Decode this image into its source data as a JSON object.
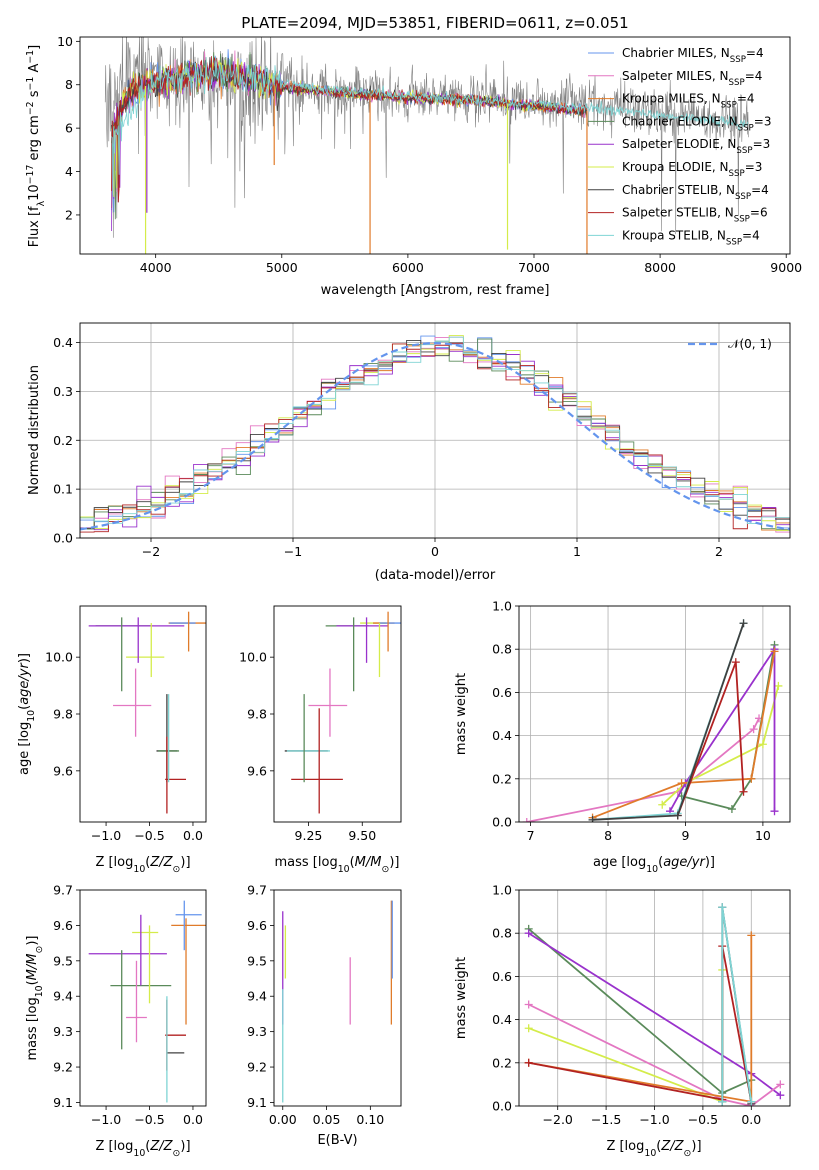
{
  "chart_data": [
    {
      "id": "spectrum",
      "type": "line",
      "title": "PLATE=2094, MJD=53851, FIBERID=0611, z=0.051",
      "xlabel": "wavelength [Angstrom, rest frame]",
      "ylabel": "Flux [f_λ10^-17 erg cm^-2 s^-1 A^-1]",
      "xlim": [
        3400,
        9030
      ],
      "ylim": [
        0.2,
        10.2
      ],
      "xticks": [
        "4000",
        "5000",
        "6000",
        "7000",
        "8000",
        "9000"
      ],
      "yticks": [
        "2",
        "4",
        "6",
        "8",
        "10"
      ],
      "grid": false,
      "legend_position": "upper-right",
      "data_series": {
        "name": "data",
        "color": "#808080",
        "wavelength_range": [
          3600,
          8700
        ],
        "profile_wl": [
          3600,
          3700,
          3800,
          3900,
          4000,
          4200,
          4500,
          5000,
          5500,
          6000,
          6500,
          7000,
          7500,
          8000,
          8500,
          8700
        ],
        "profile_flux": [
          6.0,
          7.6,
          8.4,
          8.6,
          8.5,
          8.2,
          8.0,
          7.8,
          7.6,
          7.5,
          7.4,
          7.3,
          7.1,
          6.7,
          6.4,
          6.2
        ]
      },
      "series": [
        {
          "name": "Chabrier MILES, N_SSP=4",
          "color": "#6495ed"
        },
        {
          "name": "Salpeter MILES, N_SSP=4",
          "color": "#e377c2"
        },
        {
          "name": "Kroupa MILES, N_SSP=4",
          "color": "#e07b2a"
        },
        {
          "name": "Chabrier ELODIE, N_SSP=3",
          "color": "#5a8a5a"
        },
        {
          "name": "Salpeter ELODIE, N_SSP=3",
          "color": "#9932cc"
        },
        {
          "name": "Kroupa ELODIE, N_SSP=3",
          "color": "#d4ec4a"
        },
        {
          "name": "Chabrier STELIB, N_SSP=4",
          "color": "#404040"
        },
        {
          "name": "Salpeter STELIB, N_SSP=6",
          "color": "#b22222"
        },
        {
          "name": "Kroupa STELIB, N_SSP=4",
          "color": "#7fd4d4"
        }
      ],
      "model_profile": {
        "wl": [
          3650,
          3700,
          3800,
          3900,
          4000,
          4100,
          4300,
          4500,
          4700,
          5000,
          5500,
          6000,
          6500,
          7000,
          7400
        ],
        "flux": [
          5.6,
          6.6,
          7.6,
          7.9,
          8.1,
          8.2,
          8.5,
          8.6,
          8.3,
          7.9,
          7.6,
          7.4,
          7.3,
          7.0,
          6.8
        ]
      },
      "model_end_wl": 7420,
      "kroupa_stelib_profile": {
        "wl": [
          3650,
          4000,
          4500,
          5000,
          5500,
          6000,
          6500,
          7000,
          7500,
          8000,
          8500,
          8700
        ],
        "flux": [
          5.6,
          8.2,
          8.5,
          8.0,
          7.7,
          7.5,
          7.3,
          7.1,
          6.9,
          6.6,
          6.3,
          6.1
        ]
      },
      "dips": [
        {
          "wl": 3920,
          "flux": 0.2,
          "color": "#d4ec4a"
        },
        {
          "wl": 5700,
          "flux": 0.2,
          "color": "#e07b2a"
        },
        {
          "wl": 6790,
          "flux": 0.4,
          "color": "#d4ec4a"
        },
        {
          "wl": 7420,
          "flux": 0.2,
          "color": "#e07b2a"
        },
        {
          "wl": 4940,
          "flux": 4.3,
          "color": "#e07b2a"
        },
        {
          "wl": 3930,
          "flux": 2.1,
          "color": "#9932cc"
        }
      ]
    },
    {
      "id": "residuals",
      "type": "histogram",
      "xlabel": "(data-model)/error",
      "ylabel": "Normed distribution",
      "xlim": [
        -2.5,
        2.5
      ],
      "ylim": [
        0,
        0.44
      ],
      "xticks": [
        "−2",
        "−1",
        "0",
        "1",
        "2"
      ],
      "yticks": [
        "0.0",
        "0.1",
        "0.2",
        "0.3",
        "0.4"
      ],
      "grid": true,
      "legend_position": "upper-right",
      "legend": "𝒩(0, 1)",
      "curve": {
        "name": "𝒩(0, 1)",
        "mean": 0,
        "sigma": 1,
        "color": "#6495ed",
        "style": "dashed"
      },
      "bin_width": 0.1
    },
    {
      "id": "age-vs-Z",
      "type": "errorbar",
      "xlabel": "Z [log10(Z/Z⊙)]",
      "ylabel": "age  [log10(age/yr)]",
      "xlim": [
        -1.3,
        0.15
      ],
      "ylim": [
        9.42,
        10.18
      ],
      "xticks": [
        "−1.0",
        "−0.5",
        "0.0"
      ],
      "yticks": [
        "9.6",
        "9.8",
        "10.0"
      ],
      "points": [
        {
          "x": -0.8,
          "xerr": 0.32,
          "y": 10.11,
          "yerr": 0.0,
          "color": "#5a8a5a"
        },
        {
          "x": -0.65,
          "xerr": 0.55,
          "y": 10.11,
          "yerr": 0.0,
          "color": "#9932cc"
        },
        {
          "x": -0.55,
          "xerr": 0.22,
          "y": 10.0,
          "yerr": 0.14,
          "color": "#d4ec4a"
        },
        {
          "x": -0.7,
          "xerr": 0.22,
          "y": 9.83,
          "yerr": 0.0,
          "color": "#e377c2"
        },
        {
          "x": -0.05,
          "xerr": 0.23,
          "y": 10.12,
          "yerr": 0.0,
          "color": "#e07b2a"
        },
        {
          "x": -0.12,
          "xerr": 0.15,
          "y": 10.12,
          "yerr": 0.0,
          "color": "#6495ed"
        },
        {
          "x": -0.3,
          "xerr": 0.12,
          "y": 9.67,
          "yerr": 0.0,
          "color": "#404040"
        },
        {
          "x": -0.28,
          "xerr": 0.12,
          "y": 9.67,
          "yerr": 0.0,
          "color": "#5a8a5a"
        },
        {
          "x": -0.2,
          "xerr": 0.12,
          "y": 9.57,
          "yerr": 0.0,
          "color": "#b22222"
        }
      ],
      "vlines": [
        {
          "x": -0.82,
          "y1": 9.88,
          "y2": 10.14,
          "color": "#5a8a5a"
        },
        {
          "x": -0.63,
          "y1": 9.98,
          "y2": 10.14,
          "color": "#9932cc"
        },
        {
          "x": -0.48,
          "y1": 9.93,
          "y2": 10.12,
          "color": "#d4ec4a"
        },
        {
          "x": -0.66,
          "y1": 9.72,
          "y2": 9.96,
          "color": "#e377c2"
        },
        {
          "x": -0.05,
          "y1": 10.02,
          "y2": 10.16,
          "color": "#e07b2a"
        },
        {
          "x": -0.3,
          "y1": 9.56,
          "y2": 9.87,
          "color": "#404040"
        },
        {
          "x": -0.28,
          "y1": 9.56,
          "y2": 9.87,
          "color": "#7fd4d4"
        },
        {
          "x": -0.3,
          "y1": 9.45,
          "y2": 9.72,
          "color": "#b22222"
        }
      ]
    },
    {
      "id": "age-vs-mass",
      "type": "errorbar",
      "xlabel": "mass [log10(M/M⊙)]",
      "xlim": [
        9.09,
        9.68
      ],
      "ylim": [
        9.42,
        10.18
      ],
      "xticks": [
        "9.25",
        "9.50"
      ],
      "yticks": [
        "9.6",
        "9.8",
        "10.0"
      ],
      "points": [
        {
          "x": 9.43,
          "xerr": 0.1,
          "y": 10.11,
          "yerr": 0.0,
          "color": "#5a8a5a"
        },
        {
          "x": 9.5,
          "xerr": 0.12,
          "y": 10.11,
          "yerr": 0.0,
          "color": "#9932cc"
        },
        {
          "x": 9.55,
          "xerr": 0.06,
          "y": 10.12,
          "yerr": 0.0,
          "color": "#d4ec4a"
        },
        {
          "x": 9.6,
          "xerr": 0.05,
          "y": 10.12,
          "yerr": 0.0,
          "color": "#e07b2a"
        },
        {
          "x": 9.63,
          "xerr": 0.05,
          "y": 10.12,
          "yerr": 0.0,
          "color": "#6495ed"
        },
        {
          "x": 9.34,
          "xerr": 0.09,
          "y": 9.83,
          "yerr": 0.0,
          "color": "#e377c2"
        },
        {
          "x": 9.24,
          "xerr": 0.1,
          "y": 9.67,
          "yerr": 0.0,
          "color": "#404040"
        },
        {
          "x": 9.25,
          "xerr": 0.1,
          "y": 9.67,
          "yerr": 0.0,
          "color": "#7fd4d4"
        },
        {
          "x": 9.29,
          "xerr": 0.12,
          "y": 9.57,
          "yerr": 0.0,
          "color": "#b22222"
        }
      ],
      "vlines": [
        {
          "x": 9.46,
          "y1": 9.88,
          "y2": 10.14,
          "color": "#5a8a5a"
        },
        {
          "x": 9.52,
          "y1": 9.98,
          "y2": 10.14,
          "color": "#9932cc"
        },
        {
          "x": 9.58,
          "y1": 9.93,
          "y2": 10.12,
          "color": "#d4ec4a"
        },
        {
          "x": 9.62,
          "y1": 10.02,
          "y2": 10.16,
          "color": "#e07b2a"
        },
        {
          "x": 9.35,
          "y1": 9.72,
          "y2": 9.96,
          "color": "#e377c2"
        },
        {
          "x": 9.23,
          "y1": 9.56,
          "y2": 9.87,
          "color": "#5a8a5a"
        },
        {
          "x": 9.3,
          "y1": 9.45,
          "y2": 9.82,
          "color": "#b22222"
        }
      ]
    },
    {
      "id": "massweight-vs-age",
      "type": "line",
      "xlabel": "age  [log10(age/yr)]",
      "ylabel": "mass weight",
      "xlim": [
        6.85,
        10.35
      ],
      "ylim": [
        0.0,
        1.0
      ],
      "xticks": [
        "7",
        "8",
        "9",
        "10"
      ],
      "yticks": [
        "0.0",
        "0.2",
        "0.4",
        "0.6",
        "0.8",
        "1.0"
      ],
      "grid": true,
      "series": [
        {
          "name": "Salpeter MILES",
          "color": "#e377c2",
          "x": [
            6.95,
            8.9,
            9.88,
            9.95
          ],
          "y": [
            0.0,
            0.14,
            0.43,
            0.48
          ]
        },
        {
          "name": "Kroupa ELODIE",
          "color": "#d4ec4a",
          "x": [
            8.7,
            9.0,
            10.0,
            10.2
          ],
          "y": [
            0.08,
            0.18,
            0.36,
            0.63
          ]
        },
        {
          "name": "Chabrier ELODIE",
          "color": "#5a8a5a",
          "x": [
            8.95,
            9.6,
            9.85,
            10.15
          ],
          "y": [
            0.12,
            0.06,
            0.2,
            0.82
          ]
        },
        {
          "name": "Salpeter ELODIE",
          "color": "#9932cc",
          "x": [
            8.8,
            9.0,
            10.15,
            10.15
          ],
          "y": [
            0.05,
            0.18,
            0.8,
            0.05
          ]
        },
        {
          "name": "Kroupa MILES",
          "color": "#e07b2a",
          "x": [
            7.8,
            8.95,
            9.85,
            10.15
          ],
          "y": [
            0.02,
            0.18,
            0.2,
            0.79
          ]
        },
        {
          "name": "Salpeter STELIB",
          "color": "#b22222",
          "x": [
            8.9,
            9.65,
            9.75
          ],
          "y": [
            0.03,
            0.74,
            0.14
          ]
        },
        {
          "name": "Kroupa STELIB",
          "color": "#7fd4d4",
          "x": [
            7.8,
            8.9,
            9.75
          ],
          "y": [
            0.01,
            0.04,
            0.92
          ]
        },
        {
          "name": "Chabrier STELIB",
          "color": "#404040",
          "x": [
            7.8,
            8.9,
            9.75
          ],
          "y": [
            0.01,
            0.03,
            0.92
          ]
        }
      ]
    },
    {
      "id": "mass-vs-Z",
      "type": "errorbar",
      "xlabel": "Z [log10(Z/Z⊙)]",
      "ylabel": "mass [log10(M/M⊙)]",
      "xlim": [
        -1.3,
        0.15
      ],
      "ylim": [
        9.09,
        9.7
      ],
      "xticks": [
        "−1.0",
        "−0.5",
        "0.0"
      ],
      "yticks": [
        "9.1",
        "9.2",
        "9.3",
        "9.4",
        "9.5",
        "9.6",
        "9.7"
      ],
      "points": [
        {
          "x": -0.05,
          "xerr": 0.15,
          "y": 9.63,
          "color": "#6495ed"
        },
        {
          "x": -0.05,
          "xerr": 0.2,
          "y": 9.6,
          "color": "#e07b2a"
        },
        {
          "x": -0.55,
          "xerr": 0.15,
          "y": 9.58,
          "color": "#d4ec4a"
        },
        {
          "x": -0.75,
          "xerr": 0.45,
          "y": 9.52,
          "color": "#9932cc"
        },
        {
          "x": -0.6,
          "xerr": 0.35,
          "y": 9.43,
          "color": "#5a8a5a"
        },
        {
          "x": -0.65,
          "xerr": 0.12,
          "y": 9.34,
          "color": "#e377c2"
        },
        {
          "x": -0.2,
          "xerr": 0.12,
          "y": 9.29,
          "color": "#b22222"
        },
        {
          "x": -0.2,
          "xerr": 0.1,
          "y": 9.24,
          "color": "#404040"
        }
      ],
      "vlines": [
        {
          "x": -0.1,
          "y1": 9.53,
          "y2": 9.67,
          "color": "#6495ed"
        },
        {
          "x": -0.08,
          "y1": 9.32,
          "y2": 9.62,
          "color": "#e07b2a"
        },
        {
          "x": -0.5,
          "y1": 9.38,
          "y2": 9.6,
          "color": "#d4ec4a"
        },
        {
          "x": -0.6,
          "y1": 9.43,
          "y2": 9.63,
          "color": "#9932cc"
        },
        {
          "x": -0.82,
          "y1": 9.25,
          "y2": 9.53,
          "color": "#5a8a5a"
        },
        {
          "x": -0.65,
          "y1": 9.27,
          "y2": 9.5,
          "color": "#e377c2"
        },
        {
          "x": -0.3,
          "y1": 9.19,
          "y2": 9.39,
          "color": "#b22222"
        },
        {
          "x": -0.3,
          "y1": 9.1,
          "y2": 9.4,
          "color": "#7fd4d4"
        }
      ]
    },
    {
      "id": "mass-vs-EBV",
      "type": "errorbar",
      "xlabel": "E(B-V)",
      "xlim": [
        -0.01,
        0.135
      ],
      "ylim": [
        9.09,
        9.7
      ],
      "xticks": [
        "0.00",
        "0.05",
        "0.10"
      ],
      "yticks": [
        "9.1",
        "9.2",
        "9.3",
        "9.4",
        "9.5",
        "9.6",
        "9.7"
      ],
      "vlines": [
        {
          "x": 0.0,
          "y1": 9.32,
          "y2": 9.64,
          "color": "#9932cc"
        },
        {
          "x": 0.003,
          "y1": 9.45,
          "y2": 9.6,
          "color": "#d4ec4a"
        },
        {
          "x": 0.0,
          "y1": 9.1,
          "y2": 9.42,
          "color": "#7fd4d4"
        },
        {
          "x": 0.077,
          "y1": 9.32,
          "y2": 9.51,
          "color": "#e377c2"
        },
        {
          "x": 0.124,
          "y1": 9.32,
          "y2": 9.67,
          "color": "#e07b2a"
        },
        {
          "x": 0.125,
          "y1": 9.45,
          "y2": 9.67,
          "color": "#6495ed"
        }
      ]
    },
    {
      "id": "massweight-vs-Z",
      "type": "line",
      "xlabel": "Z [log10(Z/Z⊙)]",
      "ylabel": "mass weight",
      "xlim": [
        -2.4,
        0.4
      ],
      "ylim": [
        0.0,
        1.0
      ],
      "xticks": [
        "−2.0",
        "−1.5",
        "−1.0",
        "−0.5",
        "0.0"
      ],
      "yticks": [
        "0.0",
        "0.2",
        "0.4",
        "0.6",
        "0.8",
        "1.0"
      ],
      "grid": true,
      "series": [
        {
          "name": "Chabrier ELODIE",
          "color": "#5a8a5a",
          "x": [
            -2.3,
            -0.3,
            0.0
          ],
          "y": [
            0.82,
            0.06,
            0.12
          ]
        },
        {
          "name": "Salpeter ELODIE",
          "color": "#9932cc",
          "x": [
            -2.3,
            0.0,
            0.3
          ],
          "y": [
            0.8,
            0.15,
            0.05
          ]
        },
        {
          "name": "Salpeter MILES",
          "color": "#e377c2",
          "x": [
            -2.3,
            -0.3,
            0.0,
            0.3
          ],
          "y": [
            0.47,
            0.03,
            0.0,
            0.1
          ]
        },
        {
          "name": "Kroupa ELODIE",
          "color": "#d4ec4a",
          "x": [
            -2.3,
            -0.3,
            -0.3
          ],
          "y": [
            0.36,
            0.02,
            0.63
          ]
        },
        {
          "name": "Kroupa MILES",
          "color": "#e07b2a",
          "x": [
            -2.3,
            0.0,
            0.0
          ],
          "y": [
            0.2,
            0.02,
            0.79
          ]
        },
        {
          "name": "Salpeter STELIB",
          "color": "#b22222",
          "x": [
            -2.3,
            -0.3,
            -0.3,
            0.0
          ],
          "y": [
            0.2,
            0.03,
            0.74,
            0.02
          ]
        },
        {
          "name": "Chabrier STELIB",
          "color": "#404040",
          "x": [
            -0.3,
            -0.3,
            0.0
          ],
          "y": [
            0.02,
            0.92,
            0.01
          ]
        },
        {
          "name": "Kroupa STELIB",
          "color": "#7fd4d4",
          "x": [
            -0.3,
            -0.3,
            0.0
          ],
          "y": [
            0.02,
            0.92,
            0.02
          ]
        }
      ]
    }
  ]
}
